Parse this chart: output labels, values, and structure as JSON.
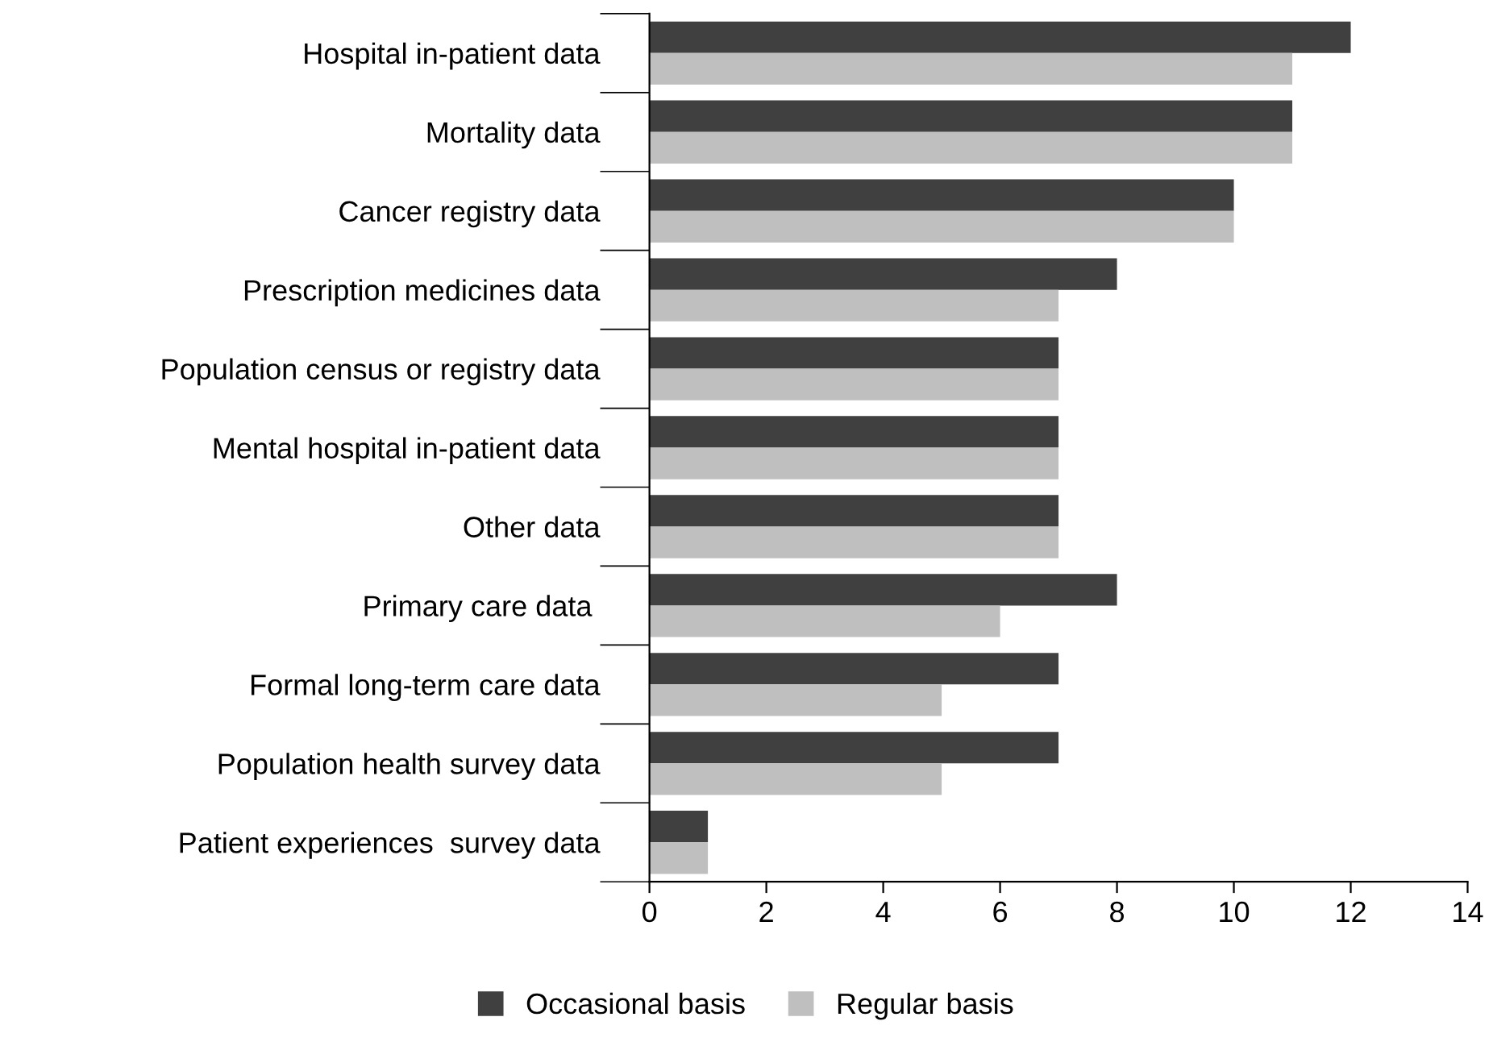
{
  "chart_data": {
    "type": "bar",
    "orientation": "horizontal",
    "categories": [
      "Hospital in-patient data",
      "Mortality data",
      "Cancer registry data",
      "Prescription medicines data",
      "Population census or registry data",
      "Mental hospital in-patient data",
      "Other data",
      "Primary care data ",
      "Formal long-term care data",
      "Population health survey data",
      "Patient experiences  survey data"
    ],
    "series": [
      {
        "name": "Occasional basis",
        "color": "#404040",
        "values": [
          12,
          11,
          10,
          8,
          7,
          7,
          7,
          8,
          7,
          7,
          1
        ]
      },
      {
        "name": "Regular basis",
        "color": "#bfbfbf",
        "values": [
          11,
          11,
          10,
          7,
          7,
          7,
          7,
          6,
          5,
          5,
          1
        ]
      }
    ],
    "xlim": [
      0,
      14
    ],
    "xticks": [
      0,
      2,
      4,
      6,
      8,
      10,
      12,
      14
    ],
    "grid": false,
    "legend": "bottom"
  }
}
